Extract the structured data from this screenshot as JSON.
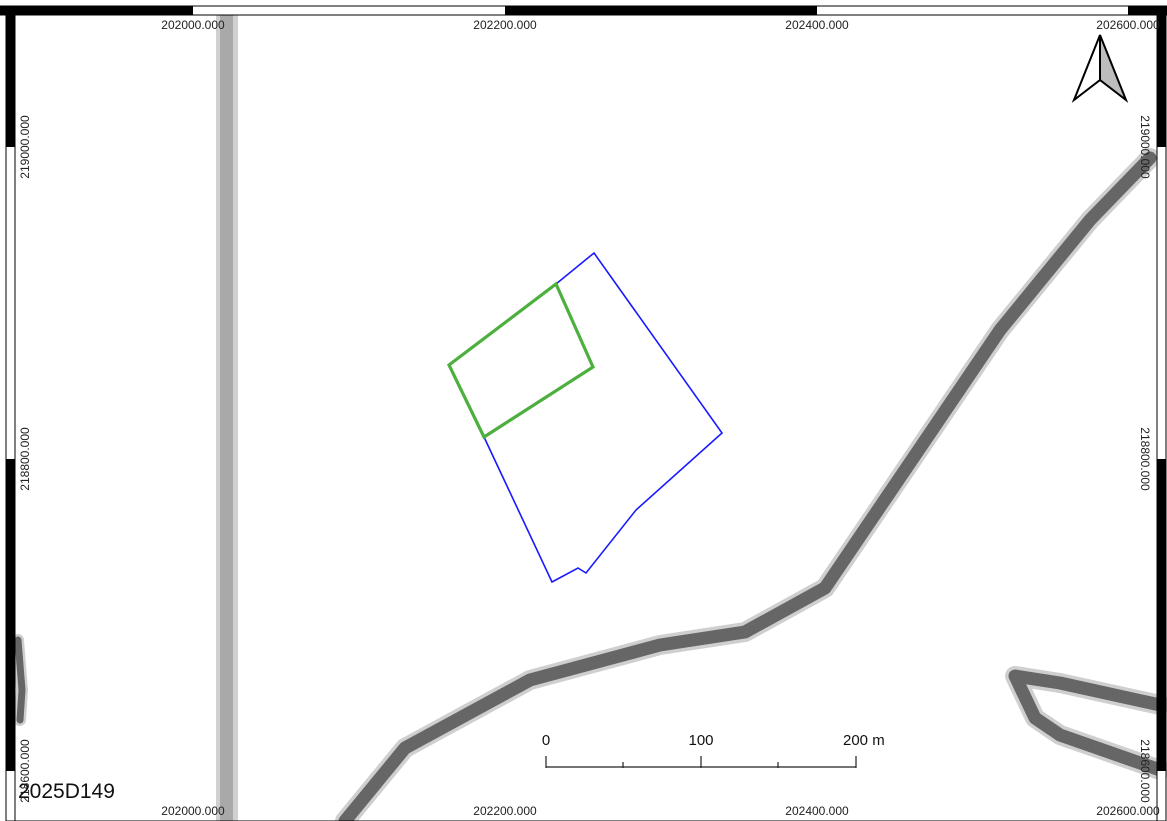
{
  "map": {
    "grid_labels": {
      "x_top": [
        "202000.000",
        "202200.000",
        "202400.000",
        "202600.000"
      ],
      "x_bottom": [
        "202000.000",
        "202200.000",
        "202400.000",
        "202600.000"
      ],
      "y_left": [
        "219000.000",
        "218800.000",
        "218600.000"
      ],
      "y_right": [
        "219000.000",
        "218800.000",
        "218600.000"
      ]
    },
    "scale_bar": {
      "labels": [
        "0",
        "100",
        "200 m"
      ]
    },
    "map_id": "2025D149",
    "colors": {
      "site_boundary": "#1a1aff",
      "inner_parcel": "#4caf3e",
      "road": "#666666",
      "road_casing": "#c8c8c8",
      "track": "#a9a9a9",
      "frame": "#000000"
    },
    "icons": {
      "north_arrow": "north-arrow-icon"
    }
  }
}
